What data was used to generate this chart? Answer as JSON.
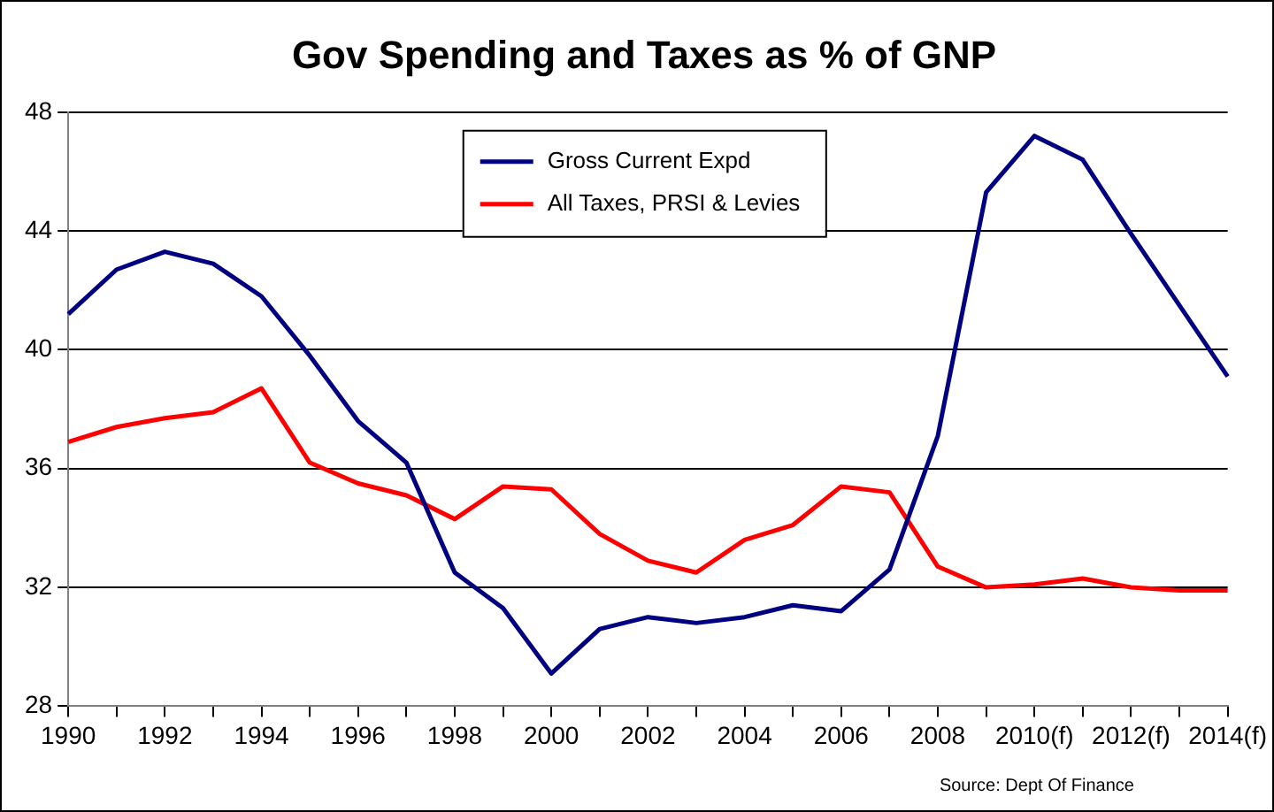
{
  "chart_data": {
    "type": "line",
    "title": "Gov Spending and Taxes as % of GNP",
    "categories": [
      "1990",
      null,
      "1992",
      null,
      "1994",
      null,
      "1996",
      null,
      "1998",
      null,
      "2000",
      null,
      "2002",
      null,
      "2004",
      null,
      "2006",
      null,
      "2008",
      null,
      "2010(f)",
      null,
      "2012(f)",
      null,
      "2014(f)"
    ],
    "series": [
      {
        "name": "Gross Current Expd",
        "color": "#000080",
        "values": [
          41.2,
          42.7,
          43.3,
          42.9,
          41.8,
          39.8,
          37.6,
          36.2,
          32.5,
          31.3,
          29.1,
          30.6,
          31.0,
          30.8,
          31.0,
          31.4,
          31.2,
          32.6,
          37.1,
          45.3,
          47.2,
          46.4,
          43.9,
          41.5,
          39.1
        ]
      },
      {
        "name": "All Taxes, PRSI & Levies",
        "color": "#ff0000",
        "values": [
          36.9,
          37.4,
          37.7,
          37.9,
          38.7,
          36.2,
          35.5,
          35.1,
          34.3,
          35.4,
          35.3,
          33.8,
          32.9,
          32.5,
          33.6,
          34.1,
          35.4,
          35.2,
          32.7,
          32.0,
          32.1,
          32.3,
          32.0,
          31.9,
          31.9
        ]
      }
    ],
    "ylim": [
      28,
      48
    ],
    "yticks": [
      28,
      32,
      36,
      40,
      44,
      48
    ],
    "grid": "y",
    "legend": "top",
    "marker": "none",
    "line_style": "solid",
    "annotations": [
      "Source: Dept Of Finance"
    ]
  }
}
